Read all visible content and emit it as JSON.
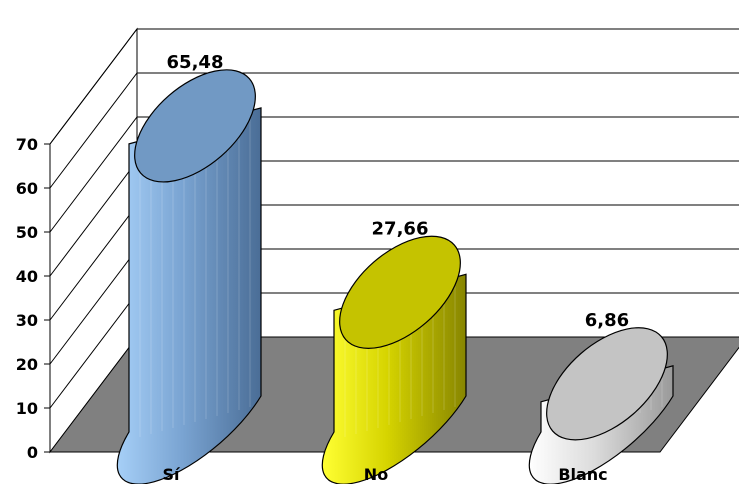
{
  "chart_data": {
    "type": "bar",
    "style": "3d-cylinder",
    "categories": [
      "Sí",
      "No",
      "Blanc"
    ],
    "values": [
      65.48,
      27.66,
      6.86
    ],
    "data_labels": [
      "65,48",
      "27,66",
      "6,86"
    ],
    "ylim": [
      0,
      70
    ],
    "yticks": [
      "0",
      "10",
      "20",
      "30",
      "40",
      "50",
      "60",
      "70"
    ],
    "grid": true,
    "legend": "none",
    "colors": {
      "bar_si": "#7da7d4",
      "bar_no": "#e2e000",
      "bar_blanc": "#d0d0d0",
      "floor": "#808080"
    }
  }
}
